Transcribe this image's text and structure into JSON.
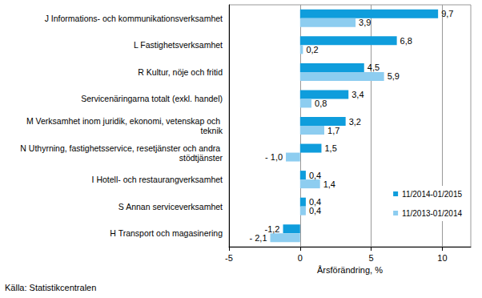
{
  "chart_data": {
    "type": "bar",
    "orientation": "horizontal",
    "categories": [
      "J Informations- och kommunikationsverksamhet",
      "L Fastighetsverksamhet",
      "R Kultur, nöje och fritid",
      "Servicenäringarna totalt (exkl. handel)",
      "M Verksamhet inom juridik, ekonomi, vetenskap och teknik",
      "N Uthyrning, fastighetsservice, resetjänster och andra stödtjänster",
      "I Hotell- och restaurangverksamhet",
      "S Annan serviceverksamhet",
      "H Transport och magasinering"
    ],
    "series": [
      {
        "name": "11/2014-01/2015",
        "color": "#0f9ddc",
        "values": [
          9.7,
          6.8,
          4.5,
          3.4,
          3.2,
          1.5,
          0.4,
          0.4,
          -1.2
        ],
        "value_labels": [
          "9,7",
          "6,8",
          "4,5",
          "3,4",
          "3,2",
          "1,5",
          "0,4",
          "0,4",
          "-1,2"
        ]
      },
      {
        "name": "11/2013-01/2014",
        "color": "#8dcdf0",
        "values": [
          3.9,
          0.2,
          5.9,
          0.8,
          1.7,
          -1.0,
          1.4,
          0.4,
          -2.1
        ],
        "value_labels": [
          "3,9",
          "0,2",
          "5,9",
          "0,8",
          "1,7",
          "- 1,0",
          "1,4",
          "0,4",
          "- 2,1"
        ]
      }
    ],
    "x_label": "Årsförändring, %",
    "annotations": [
      "Källa: Statistikcentralen"
    ],
    "xlim": [
      -5,
      12
    ],
    "xticks": [
      -5,
      0,
      5,
      10
    ],
    "grid": true,
    "legend": "lower right",
    "data_labels": true
  }
}
